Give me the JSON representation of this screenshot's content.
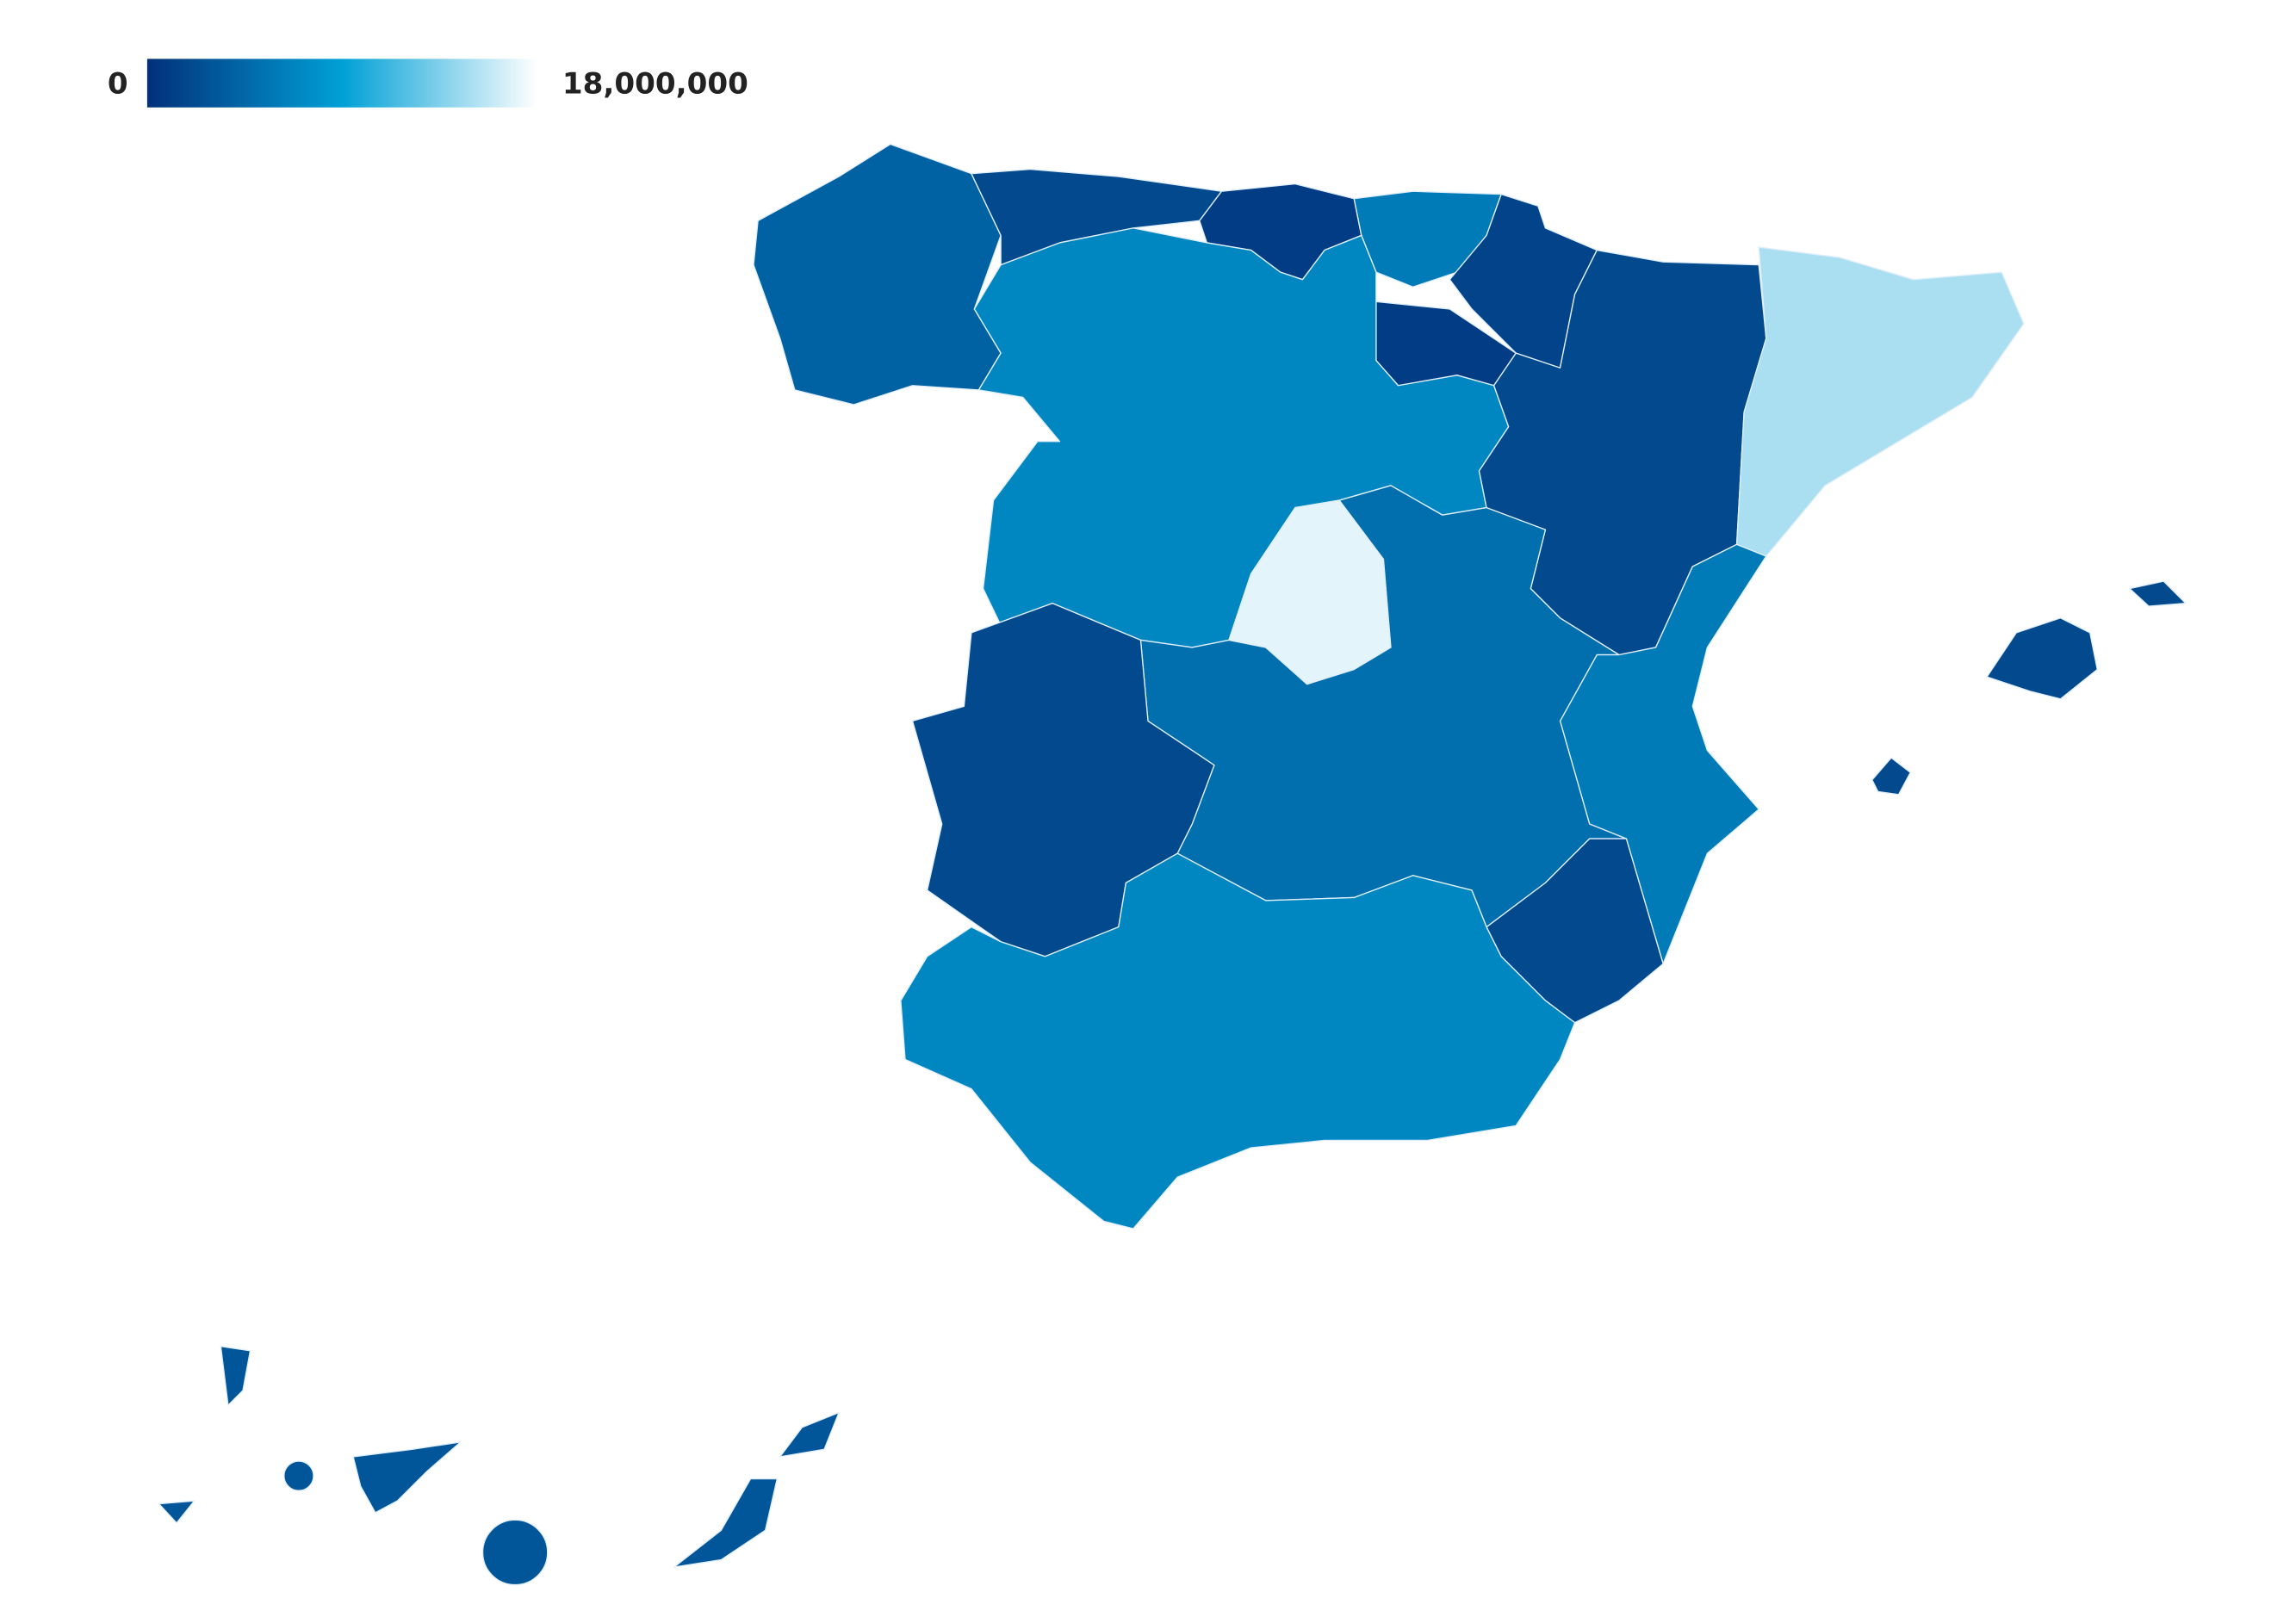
{
  "chart_data": {
    "type": "choropleth",
    "colorscale": [
      "#02307a",
      "#00a0d6",
      "#ffffff"
    ],
    "ticks": [
      0,
      {
        "value": 18000000,
        "label": "18,000,000"
      }
    ],
    "values": [
      4000000,
      2000000,
      1000000,
      6000000,
      1500000,
      1000000,
      7000000,
      17000000,
      2000000,
      15000000,
      6000000,
      5000000,
      2000000,
      2000000,
      7000000,
      2000000,
      3000000
    ]
  }
}
